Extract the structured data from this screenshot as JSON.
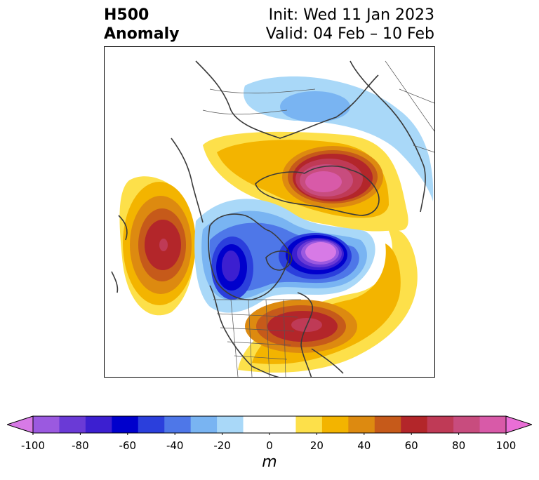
{
  "title": {
    "left_lines": [
      "H500",
      "Anomaly"
    ],
    "right_lines": [
      "Init: Wed 11 Jan 2023",
      "Valid: 04 Feb – 10 Feb"
    ]
  },
  "map": {
    "variable": "500 hPa geopotential height anomaly",
    "projection": "north-polar-stereographic",
    "features": [
      {
        "kind": "positive-anomaly",
        "region": "Greenland / Arctic Canada",
        "peak_m": 90
      },
      {
        "kind": "positive-anomaly",
        "region": "Eastern United States",
        "peak_m": 60
      },
      {
        "kind": "positive-anomaly",
        "region": "North Pacific / Aleutians",
        "peak_m": 60
      },
      {
        "kind": "negative-anomaly",
        "region": "Hudson Bay / Labrador",
        "peak_m": -100
      },
      {
        "kind": "negative-anomaly",
        "region": "Western North America",
        "peak_m": -70
      },
      {
        "kind": "negative-anomaly",
        "region": "Northern Siberia / Kara Sea",
        "peak_m": -30
      }
    ]
  },
  "colorbar": {
    "label": "m",
    "min": -100,
    "max": 100,
    "step": 10,
    "extend": "both",
    "tick_labels": [
      "-100",
      "-80",
      "-60",
      "-40",
      "-20",
      "0",
      "20",
      "40",
      "60",
      "80",
      "100"
    ],
    "tick_values": [
      -100,
      -80,
      -60,
      -40,
      -20,
      0,
      20,
      40,
      60,
      80,
      100
    ],
    "colors": [
      "#d77ae6",
      "#9b59e0",
      "#6a3ad6",
      "#3c1fd0",
      "#0000cc",
      "#2b3fdc",
      "#4e77e8",
      "#79b4f2",
      "#a9d8f8",
      "#ffffff",
      "#ffffff",
      "#fde04a",
      "#f3b400",
      "#dd8a10",
      "#c65a1a",
      "#b3262a",
      "#bf3a56",
      "#c84c7e",
      "#d85aa8",
      "#e96ed6"
    ]
  }
}
